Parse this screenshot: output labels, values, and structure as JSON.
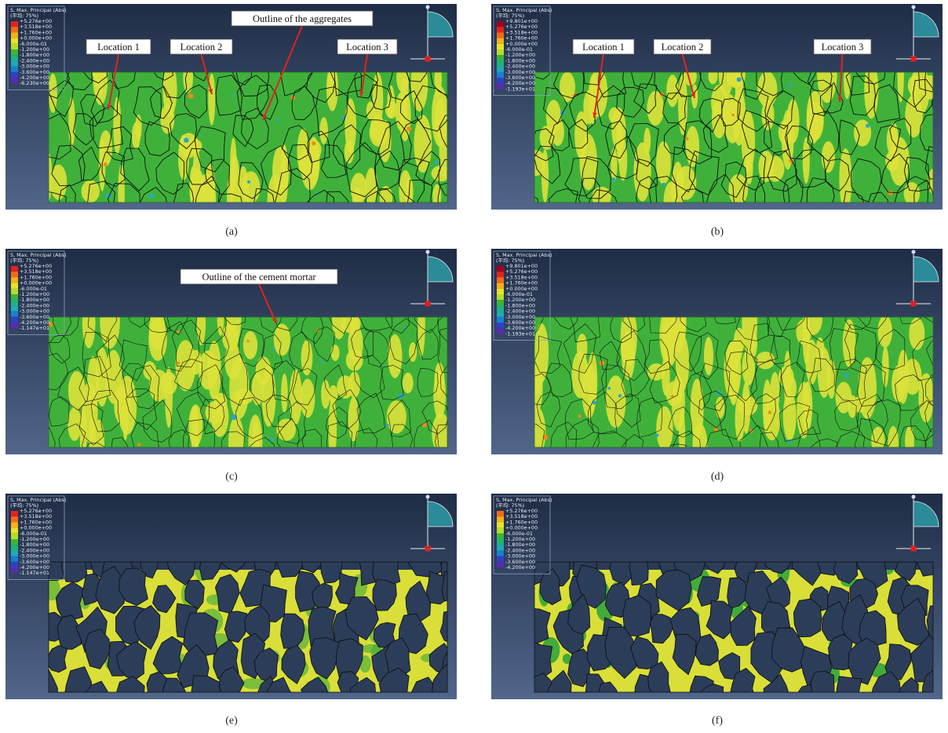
{
  "panels": [
    {
      "label": "(a)",
      "legend": {
        "title": "S, Max. Principal (Abs)",
        "subtitle": "(平均: 75%)",
        "values": [
          "+5.276e+00",
          "+3.518e+00",
          "+1.760e+00",
          "+0.000e+00",
          "-6.000e-01",
          "-1.200e+00",
          "-1.800e+00",
          "-2.400e+00",
          "-3.000e+00",
          "-3.600e+00",
          "-4.200e+00",
          "-6.230e+00"
        ]
      },
      "annotations": [
        "Location 1",
        "Location 2",
        "Outline of the aggregates",
        "Location 3"
      ]
    },
    {
      "label": "(b)",
      "legend": {
        "title": "S, Max. Principal (Abs)",
        "subtitle": "(平均: 75%)",
        "values": [
          "+9.801e+00",
          "+5.276e+00",
          "+3.518e+00",
          "+1.760e+00",
          "+0.000e+00",
          "-6.000e-01",
          "-1.200e+00",
          "-1.800e+00",
          "-2.400e+00",
          "-3.000e+00",
          "-3.600e+00",
          "-4.200e+00",
          "-1.193e+01"
        ]
      },
      "annotations": [
        "Location 1",
        "Location 2",
        "Location 3"
      ]
    },
    {
      "label": "(c)",
      "legend": {
        "title": "S, Max. Principal (Abs)",
        "subtitle": "(平均: 75%)",
        "values": [
          "+5.276e+00",
          "+3.518e+00",
          "+1.760e+00",
          "+0.000e+00",
          "-6.000e-01",
          "-1.200e+00",
          "-1.800e+00",
          "-2.400e+00",
          "-3.000e+00",
          "-3.600e+00",
          "-4.200e+00",
          "-1.147e+01"
        ]
      },
      "annotations": [
        "Outline of the cement mortar"
      ]
    },
    {
      "label": "(d)",
      "legend": {
        "title": "S, Max. Principal (Abs)",
        "subtitle": "(平均: 75%)",
        "values": [
          "+9.801e+00",
          "+5.276e+00",
          "+3.518e+00",
          "+1.760e+00",
          "+0.000e+00",
          "-6.000e-01",
          "-1.200e+00",
          "-1.800e+00",
          "-2.400e+00",
          "-3.000e+00",
          "-3.600e+00",
          "-4.200e+00",
          "-1.193e+01"
        ]
      },
      "annotations": []
    },
    {
      "label": "(e)",
      "legend": {
        "title": "S, Max. Principal (Abs)",
        "subtitle": "(平均: 75%)",
        "values": [
          "+5.276e+00",
          "+3.518e+00",
          "+1.760e+00",
          "+0.000e+00",
          "-6.000e-01",
          "-1.200e+00",
          "-1.800e+00",
          "-2.400e+00",
          "-3.000e+00",
          "-3.600e+00",
          "-4.200e+00",
          "-1.147e+01"
        ]
      },
      "annotations": []
    },
    {
      "label": "(f)",
      "legend": {
        "title": "S, Max. Principal (Abs)",
        "subtitle": "(平均: 75%)",
        "values": [
          "+5.276e+00",
          "+3.518e+00",
          "+1.760e+00",
          "+0.000e+00",
          "-6.000e-01",
          "-1.200e+00",
          "-1.800e+00",
          "-2.400e+00",
          "-3.000e+00",
          "-3.600e+00",
          "-4.200e+00"
        ]
      },
      "annotations": []
    }
  ]
}
